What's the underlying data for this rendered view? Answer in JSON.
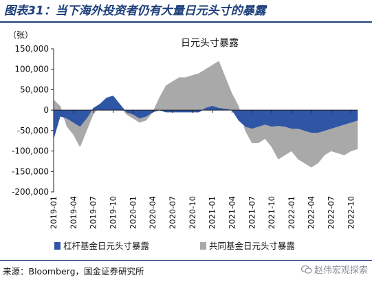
{
  "figure": {
    "title": "图表31：当下海外投资者仍有大量日元头寸的暴露",
    "source": "来源：Bloomberg，国金证券研究所",
    "watermark": "赵伟宏观探索",
    "watermark_icon": "wechat-icon"
  },
  "colors": {
    "series_leveraged": "#2e56a5",
    "series_asset_manager": "#a9a9a9",
    "title": "#1d3f7a"
  },
  "chart_data": {
    "type": "area",
    "title": "日元头寸暴露",
    "unit_label": "（张）",
    "ylim": [
      -200000,
      150000
    ],
    "yticks": [
      150000,
      100000,
      50000,
      0,
      -50000,
      -100000,
      -150000,
      -200000
    ],
    "ytick_labels": [
      "150,000",
      "100,000",
      "50,000",
      "0",
      "-50,000",
      "-100,000",
      "-150,000",
      "-200,000"
    ],
    "xlim": [
      "2019-01",
      "2022-11"
    ],
    "xtick_labels": [
      "2019-01",
      "2019-04",
      "2019-07",
      "2019-10",
      "2020-01",
      "2020-04",
      "2020-07",
      "2020-10",
      "2021-01",
      "2021-04",
      "2021-07",
      "2021-10",
      "2022-01",
      "2022-04",
      "2022-07",
      "2022-10"
    ],
    "legend_position": "bottom",
    "grid": false,
    "x": [
      "2019-01",
      "2019-02",
      "2019-03",
      "2019-04",
      "2019-05",
      "2019-06",
      "2019-07",
      "2019-08",
      "2019-09",
      "2019-10",
      "2019-11",
      "2019-12",
      "2020-01",
      "2020-02",
      "2020-03",
      "2020-04",
      "2020-05",
      "2020-06",
      "2020-07",
      "2020-08",
      "2020-09",
      "2020-10",
      "2020-11",
      "2020-12",
      "2021-01",
      "2021-02",
      "2021-03",
      "2021-04",
      "2021-05",
      "2021-06",
      "2021-07",
      "2021-08",
      "2021-09",
      "2021-10",
      "2021-11",
      "2021-12",
      "2022-01",
      "2022-02",
      "2022-03",
      "2022-04",
      "2022-05",
      "2022-06",
      "2022-07",
      "2022-08",
      "2022-09",
      "2022-10",
      "2022-11"
    ],
    "series": [
      {
        "name": "杠杆基金日元头寸暴露",
        "values": [
          -70000,
          -15000,
          -20000,
          -30000,
          -40000,
          -20000,
          5000,
          15000,
          30000,
          35000,
          15000,
          -5000,
          -10000,
          -20000,
          -15000,
          -5000,
          0,
          -5000,
          -5000,
          -5000,
          -5000,
          -5000,
          -5000,
          5000,
          10000,
          5000,
          3000,
          0,
          -25000,
          -40000,
          -45000,
          -40000,
          -35000,
          -40000,
          -38000,
          -40000,
          -45000,
          -45000,
          -50000,
          -55000,
          -55000,
          -50000,
          -45000,
          -40000,
          -35000,
          -30000,
          -25000
        ]
      },
      {
        "name": "共同基金日元头寸暴露",
        "values": [
          25000,
          10000,
          -40000,
          -60000,
          -90000,
          -50000,
          -10000,
          10000,
          20000,
          25000,
          10000,
          -10000,
          -20000,
          -30000,
          -25000,
          -5000,
          30000,
          60000,
          70000,
          80000,
          80000,
          85000,
          90000,
          100000,
          110000,
          120000,
          80000,
          40000,
          10000,
          -50000,
          -80000,
          -80000,
          -70000,
          -90000,
          -120000,
          -110000,
          -100000,
          -120000,
          -130000,
          -140000,
          -130000,
          -110000,
          -100000,
          -105000,
          -110000,
          -100000,
          -95000
        ]
      }
    ]
  }
}
